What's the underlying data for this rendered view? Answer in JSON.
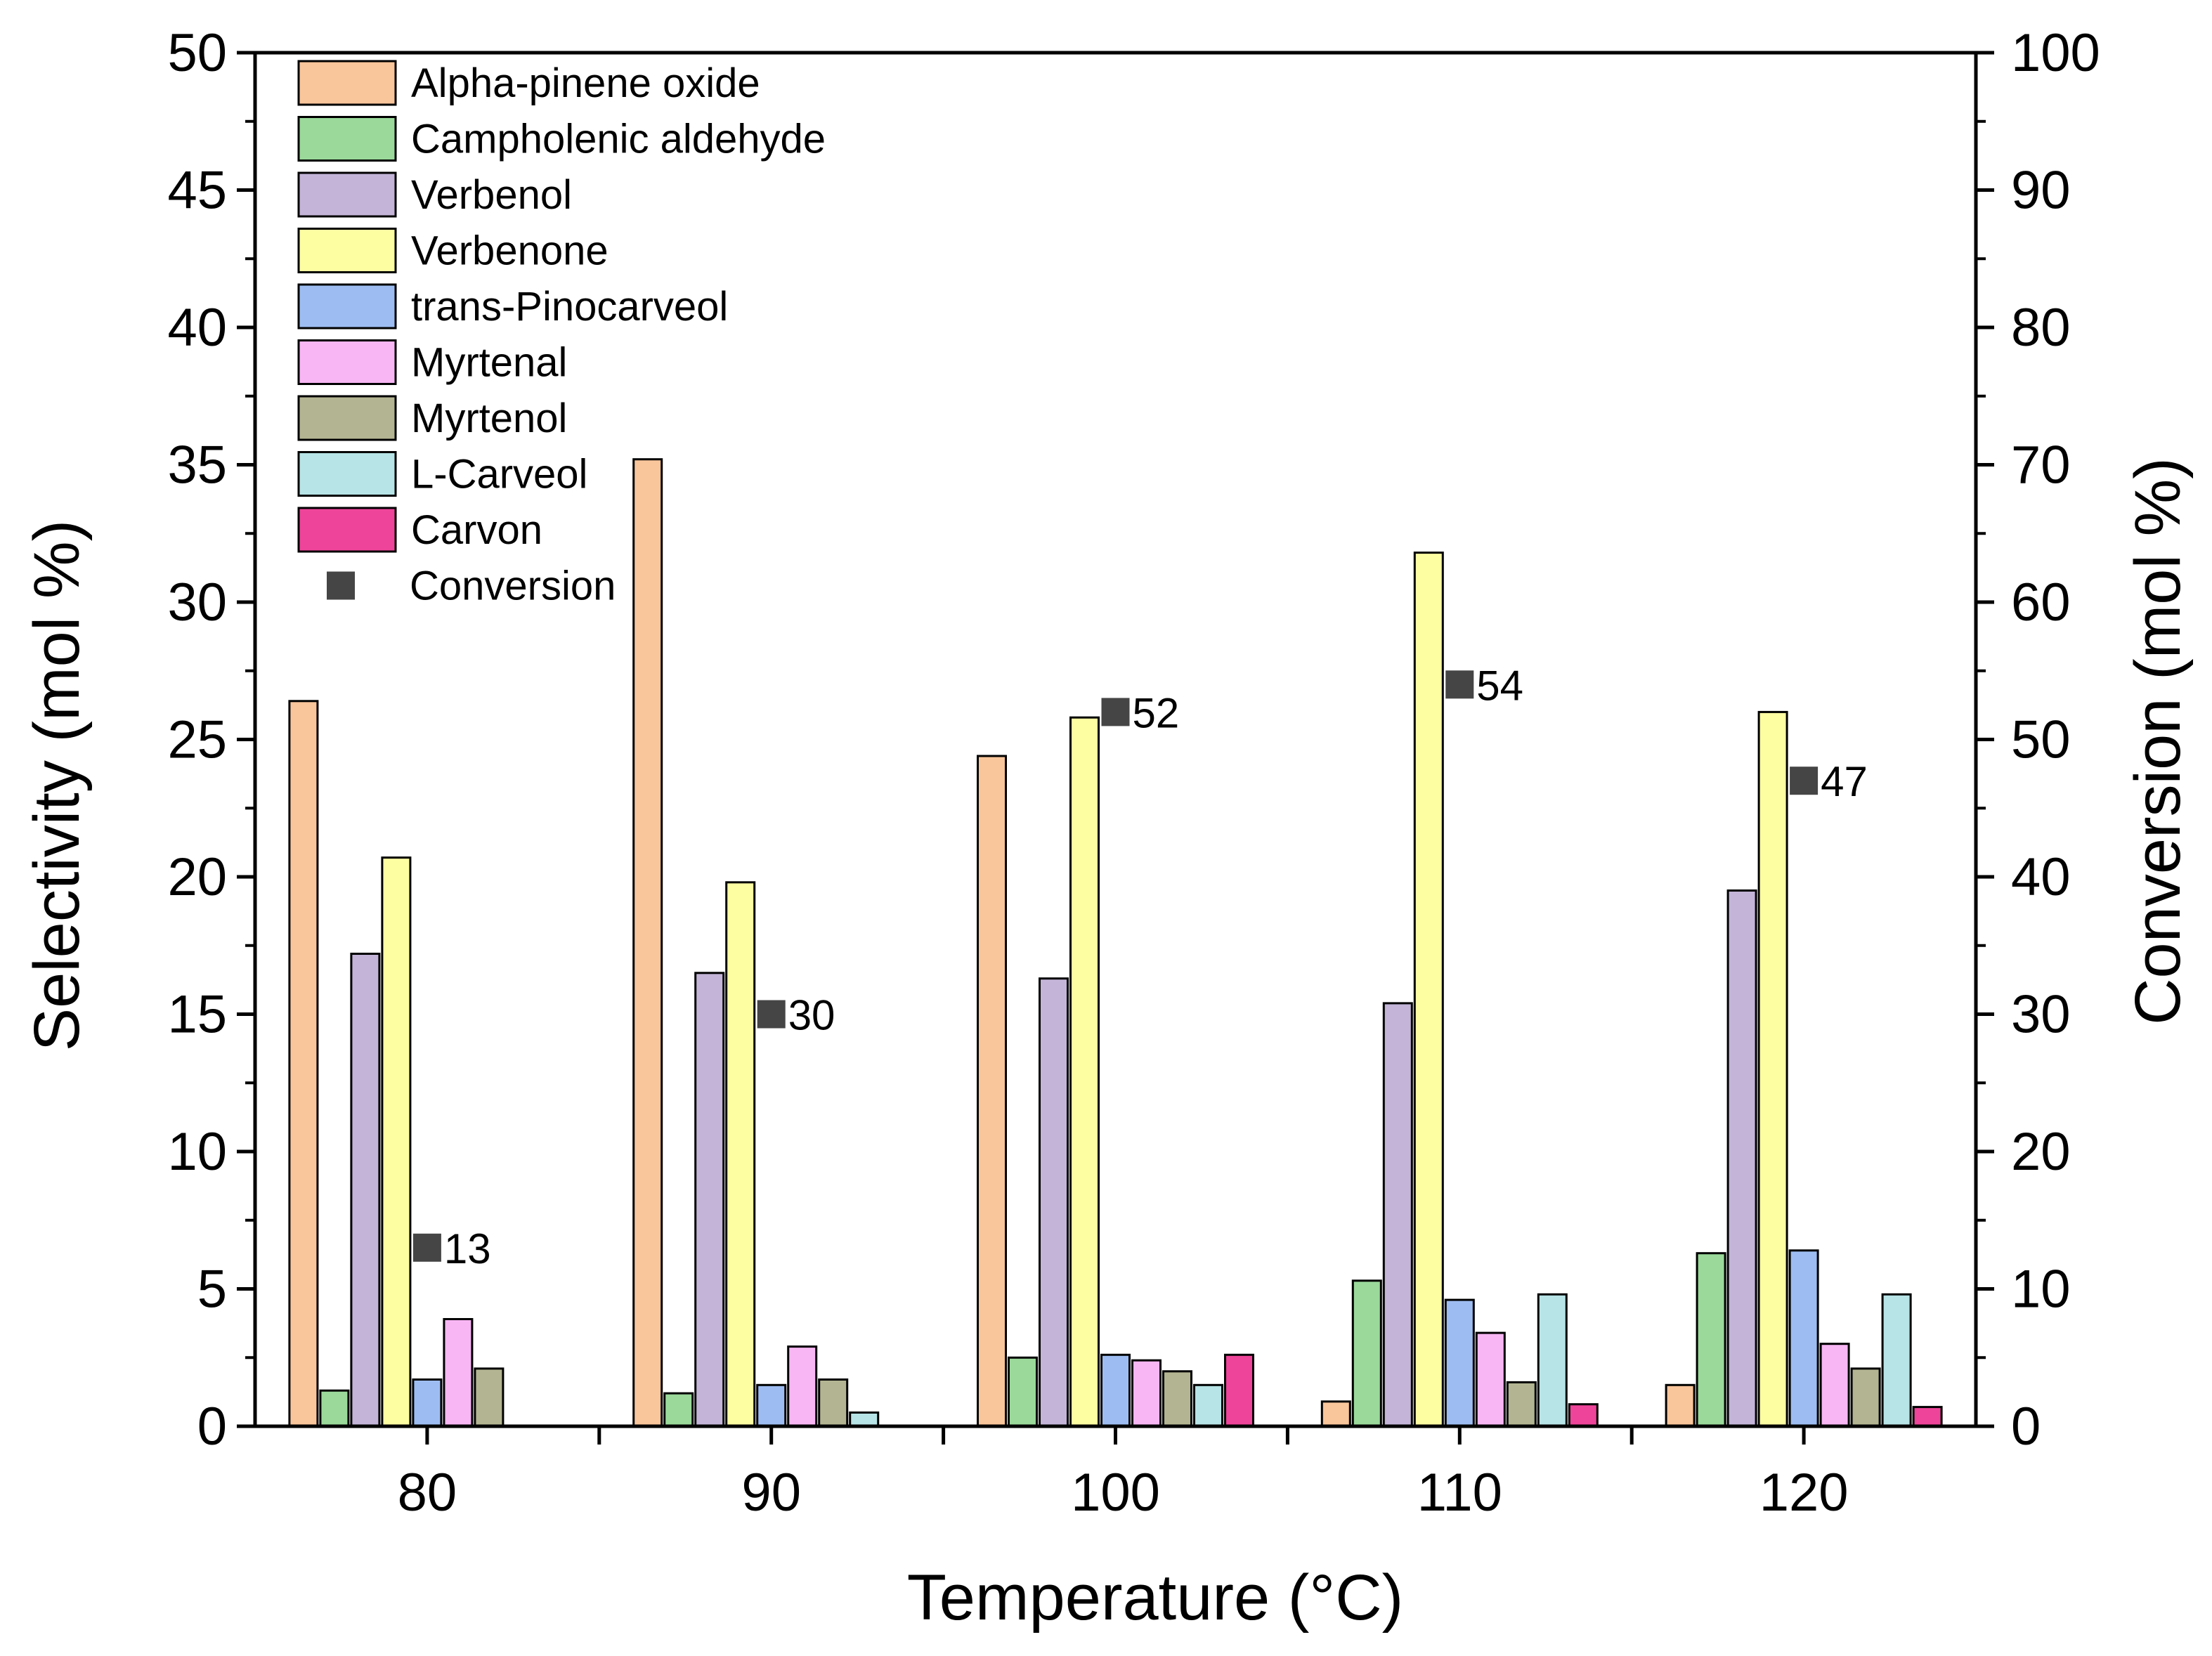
{
  "chart_data": {
    "type": "bar",
    "xlabel": "Temperature (°C)",
    "ylabel": "Selectivity (mol %)",
    "y2label": "Conversion (mol %)",
    "categories": [
      "80",
      "90",
      "100",
      "110",
      "120"
    ],
    "ylim": [
      0,
      50
    ],
    "y2lim": [
      0,
      100
    ],
    "yticks": [
      "0",
      "5",
      "10",
      "15",
      "20",
      "25",
      "30",
      "35",
      "40",
      "45",
      "50"
    ],
    "y2ticks": [
      "0",
      "10",
      "20",
      "30",
      "40",
      "50",
      "60",
      "70",
      "80",
      "90",
      "100"
    ],
    "legend_position": "top-left",
    "grid": false,
    "series": [
      {
        "name": "Alpha-pinene oxide",
        "color": "#F9C59A",
        "values": [
          26.4,
          35.2,
          24.4,
          0.9,
          1.5
        ]
      },
      {
        "name": "Campholenic aldehyde",
        "color": "#9AD99A",
        "values": [
          1.3,
          1.2,
          2.5,
          5.3,
          6.3
        ]
      },
      {
        "name": "Verbenol",
        "color": "#C3B4D8",
        "values": [
          17.2,
          16.5,
          16.3,
          15.4,
          19.5
        ]
      },
      {
        "name": "Verbenone",
        "color": "#FDFDA2",
        "values": [
          20.7,
          19.8,
          25.8,
          31.8,
          26.0
        ]
      },
      {
        "name": "trans-Pinocarveol",
        "color": "#9DBDF2",
        "values": [
          1.7,
          1.5,
          2.6,
          4.6,
          6.4
        ]
      },
      {
        "name": "Myrtenal",
        "color": "#F8B6F4",
        "values": [
          3.9,
          2.9,
          2.4,
          3.4,
          3.0
        ]
      },
      {
        "name": "Myrtenol",
        "color": "#B3B592",
        "values": [
          2.1,
          1.7,
          2.0,
          1.6,
          2.1
        ]
      },
      {
        "name": "L-Carveol",
        "color": "#B7E4E6",
        "values": [
          0,
          0.5,
          1.5,
          4.8,
          4.8
        ]
      },
      {
        "name": "Carvon",
        "color": "#EE4499",
        "values": [
          0,
          0,
          2.6,
          0.8,
          0.7
        ]
      }
    ],
    "conversion": {
      "name": "Conversion",
      "color": "#454545",
      "values": [
        13,
        30,
        52,
        54,
        47
      ],
      "labels": [
        "13",
        "30",
        "52",
        "54",
        "47"
      ]
    }
  }
}
